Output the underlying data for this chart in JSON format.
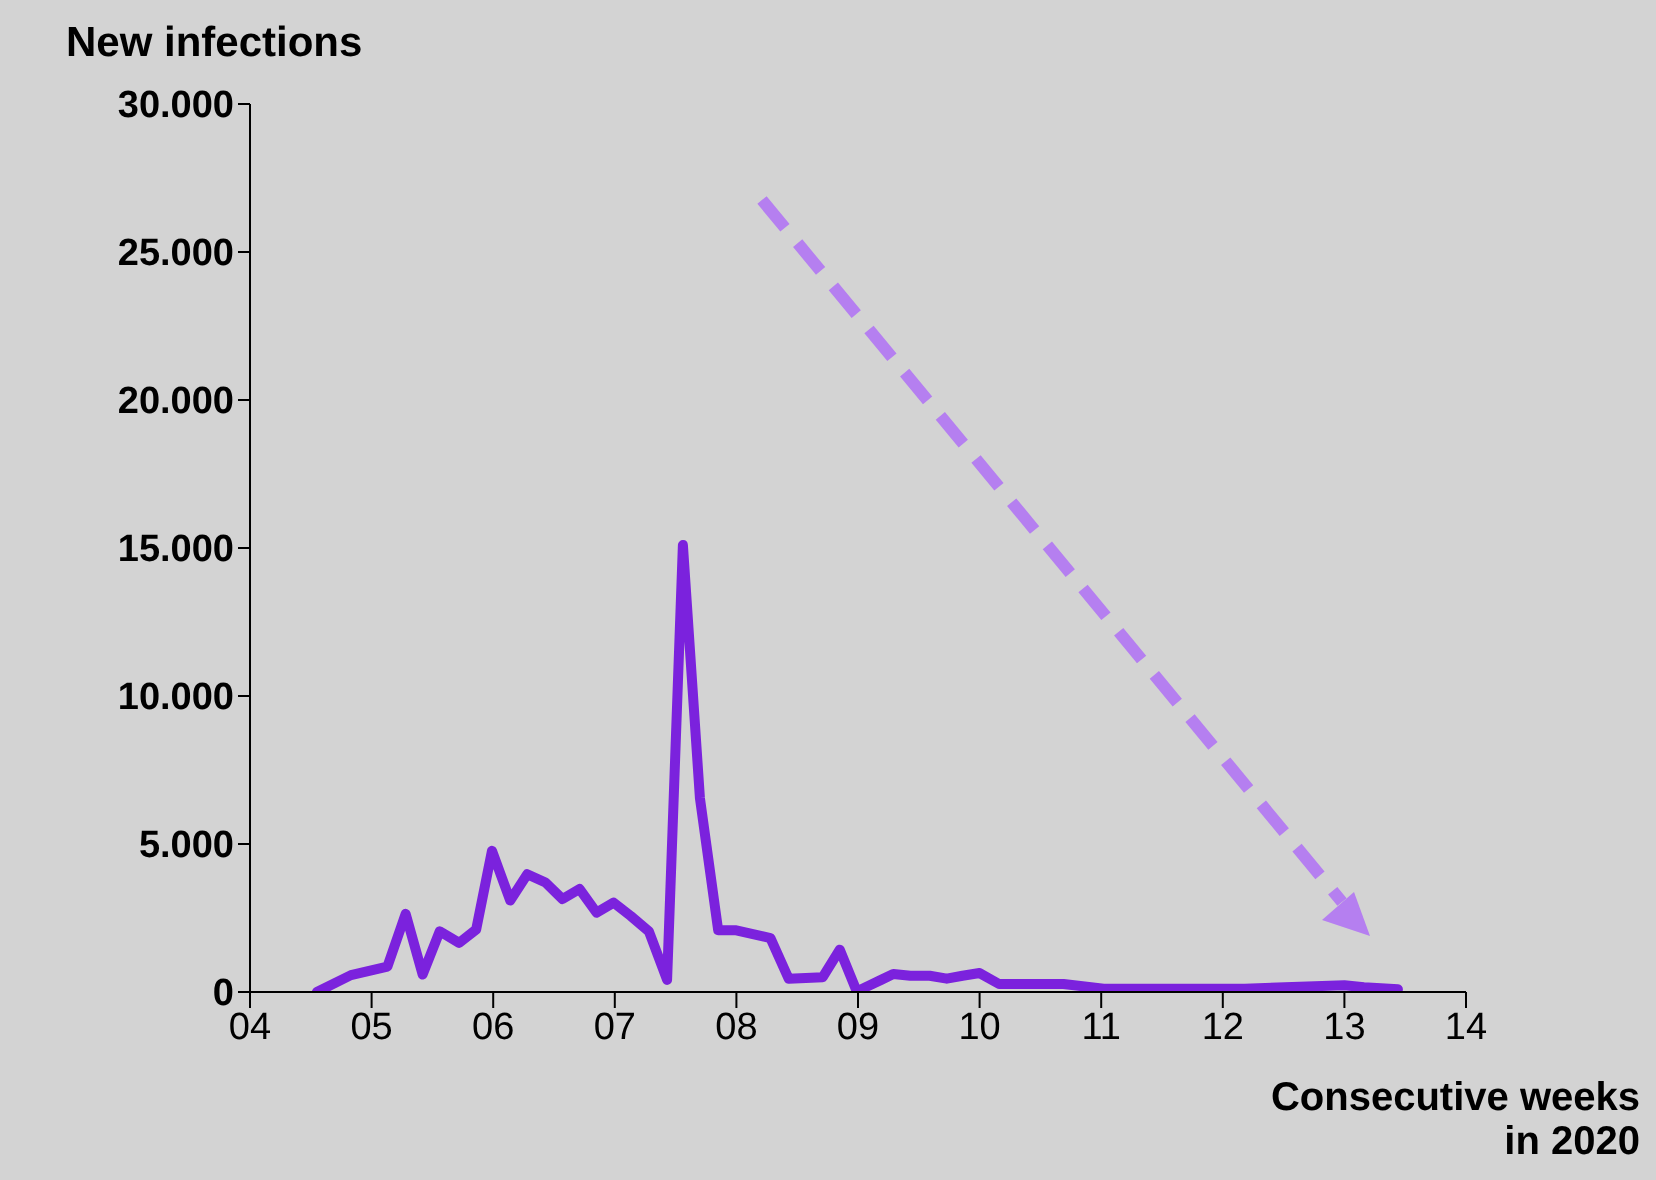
{
  "chart_data": {
    "type": "line",
    "ylabel": "New infections",
    "xlabel": "Consecutive weeks in 2020",
    "xlim": [
      4,
      14
    ],
    "xticks": [
      {
        "value": 4,
        "label": "04"
      },
      {
        "value": 5,
        "label": "05"
      },
      {
        "value": 6,
        "label": "06"
      },
      {
        "value": 7,
        "label": "07"
      },
      {
        "value": 8,
        "label": "08"
      },
      {
        "value": 9,
        "label": "09"
      },
      {
        "value": 10,
        "label": "10"
      },
      {
        "value": 11,
        "label": "11"
      },
      {
        "value": 12,
        "label": "12"
      },
      {
        "value": 13,
        "label": "13"
      },
      {
        "value": 14,
        "label": "14"
      }
    ],
    "ylim": [
      0,
      30000
    ],
    "yticks": [
      {
        "value": 0,
        "label": "0"
      },
      {
        "value": 5000,
        "label": "5.000"
      },
      {
        "value": 10000,
        "label": "10.000"
      },
      {
        "value": 15000,
        "label": "15.000"
      },
      {
        "value": 20000,
        "label": "20.000"
      },
      {
        "value": 25000,
        "label": "25.000"
      },
      {
        "value": 30000,
        "label": "30.000"
      }
    ],
    "grid": false,
    "legend": false,
    "marker": "none",
    "line_style": "solid",
    "series": [
      {
        "color": "#7b22dd",
        "x": [
          4.55,
          4.83,
          5.13,
          5.28,
          5.42,
          5.56,
          5.72,
          5.86,
          5.99,
          6.14,
          6.28,
          6.43,
          6.57,
          6.71,
          6.85,
          6.99,
          7.13,
          7.28,
          7.43,
          7.56,
          7.7,
          7.85,
          7.99,
          8.28,
          8.43,
          8.71,
          8.85,
          8.99,
          9.19,
          9.29,
          9.43,
          9.59,
          9.73,
          9.86,
          10.0,
          10.16,
          10.69,
          11.02,
          12.18,
          12.51,
          13.0,
          13.16,
          13.44
        ],
        "values": [
          0,
          570,
          860,
          2640,
          590,
          2050,
          1660,
          2110,
          4770,
          3090,
          3980,
          3700,
          3140,
          3480,
          2680,
          3020,
          2570,
          2050,
          410,
          15100,
          6550,
          2090,
          2090,
          1820,
          450,
          500,
          1430,
          20,
          410,
          610,
          550,
          550,
          450,
          550,
          640,
          270,
          270,
          110,
          110,
          160,
          230,
          160,
          90
        ]
      }
    ]
  }
}
